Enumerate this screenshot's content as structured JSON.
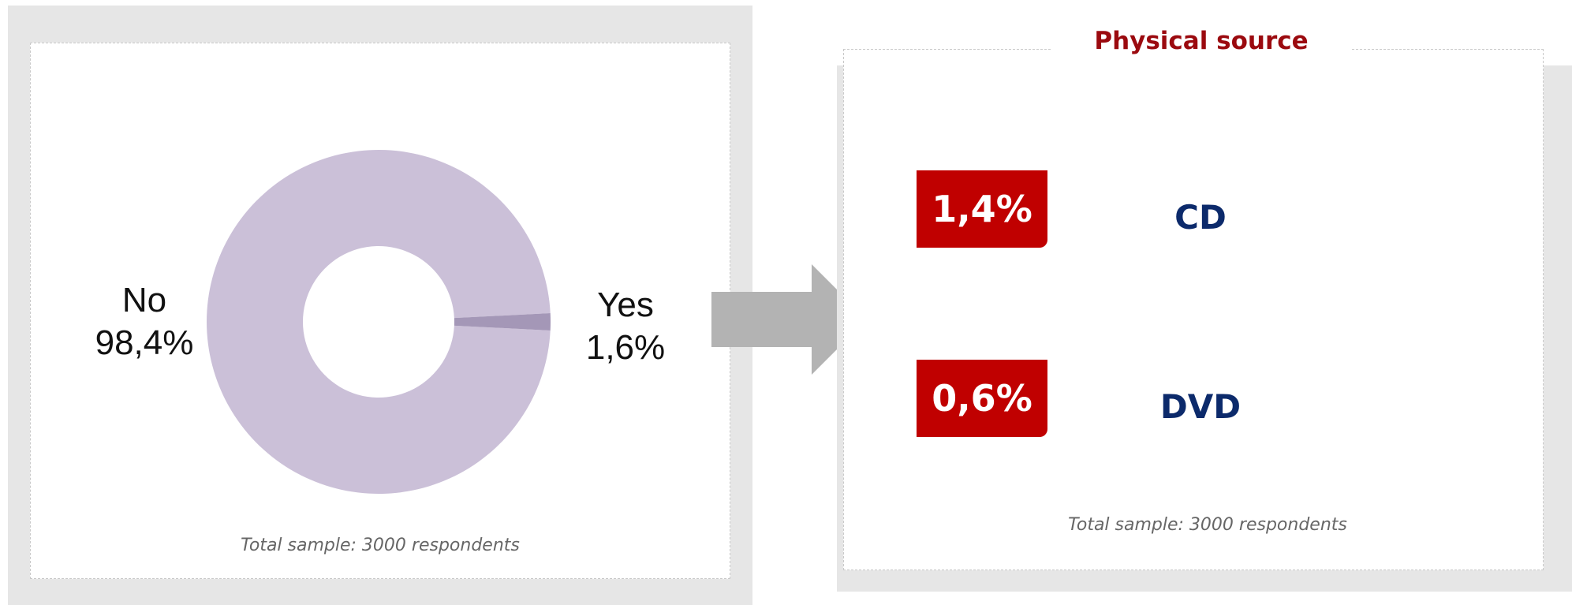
{
  "chart_data": [
    {
      "type": "pie",
      "variant": "donut",
      "categories": [
        "No",
        "Yes"
      ],
      "values": [
        98.4,
        1.6
      ],
      "labels": [
        {
          "name": "No",
          "value": "98,4%"
        },
        {
          "name": "Yes",
          "value": "1,6%"
        }
      ],
      "colors": [
        "#cbc0d8",
        "#a497b7"
      ],
      "footnote": "Total sample: 3000 respondents"
    },
    {
      "type": "table",
      "title": "Physical source",
      "rows": [
        {
          "value": 1.4,
          "value_label": "1,4%",
          "name": "CD"
        },
        {
          "value": 0.6,
          "value_label": "0,6%",
          "name": "DVD"
        }
      ],
      "badge_color": "#c00000",
      "name_color": "#0c2a6b",
      "footnote": "Total sample: 3000 respondents"
    }
  ],
  "colors": {
    "panel_background": "#e6e6e6",
    "arrow": "#b3b3b3",
    "title": "#9b0a0f"
  }
}
